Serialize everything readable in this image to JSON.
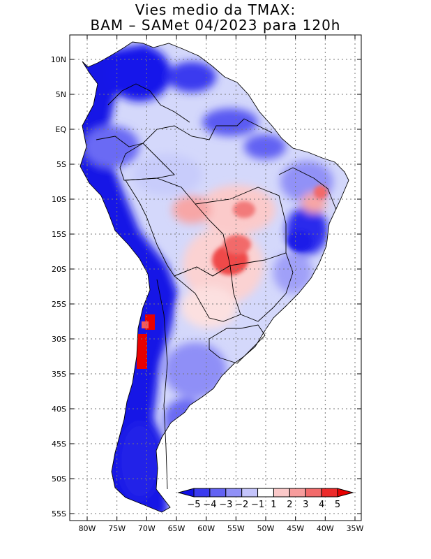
{
  "title": {
    "line1": "Vies medio da TMAX:",
    "line2": "BAM – SAMet 04/2023  para 120h"
  },
  "map": {
    "region": "South America",
    "field": "TMAX bias",
    "lon_range": [
      -83,
      -34
    ],
    "lat_range": [
      -56,
      12
    ],
    "lon_ticks": [
      "80W",
      "75W",
      "70W",
      "65W",
      "60W",
      "55W",
      "50W",
      "45W",
      "40W",
      "35W"
    ],
    "lon_tick_values": [
      -80,
      -75,
      -70,
      -65,
      -60,
      -55,
      -50,
      -45,
      -40,
      -35
    ],
    "lat_ticks": [
      "10N",
      "5N",
      "EQ",
      "5S",
      "10S",
      "15S",
      "20S",
      "25S",
      "30S",
      "35S",
      "40S",
      "45S",
      "50S",
      "55S"
    ],
    "lat_tick_values": [
      10,
      5,
      0,
      -5,
      -10,
      -15,
      -20,
      -25,
      -30,
      -35,
      -40,
      -45,
      -50,
      -55
    ],
    "gridlines": "dotted"
  },
  "colorbar": {
    "labels": [
      "−5",
      "−4",
      "−3",
      "−2",
      "−1",
      "1",
      "2",
      "3",
      "4",
      "5"
    ],
    "colors": [
      "#1010e8",
      "#3a3aef",
      "#6262f3",
      "#9191f7",
      "#c4c4fb",
      "#ffffff",
      "#fbc9c9",
      "#f79c9c",
      "#f26a6a",
      "#ed2a2a",
      "#e80000"
    ],
    "extend": "both"
  }
}
